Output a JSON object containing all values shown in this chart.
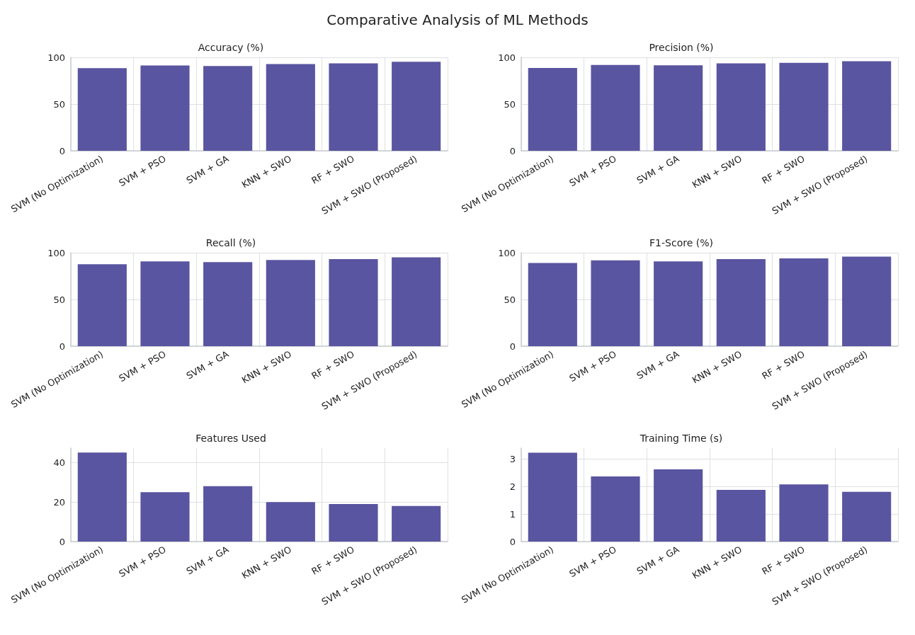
{
  "chart_data": [
    {
      "type": "other",
      "title": "Comparative Analysis of ML Methods"
    },
    {
      "type": "bar",
      "title": "Accuracy (%)",
      "categories": [
        "SVM (No Optimization)",
        "SVM + PSO",
        "SVM + GA",
        "KNN + SWO",
        "RF + SWO",
        "SVM + SWO (Proposed)"
      ],
      "values": [
        88.5,
        91.2,
        90.7,
        92.8,
        93.6,
        95.2
      ],
      "color": "#5a55a0",
      "ylim": [
        0,
        100
      ],
      "yticks": [
        0,
        50,
        100
      ],
      "grid": true
    },
    {
      "type": "bar",
      "title": "Precision (%)",
      "categories": [
        "SVM (No Optimization)",
        "SVM + PSO",
        "SVM + GA",
        "KNN + SWO",
        "RF + SWO",
        "SVM + SWO (Proposed)"
      ],
      "values": [
        88.7,
        91.9,
        91.4,
        93.5,
        94.2,
        95.8
      ],
      "color": "#5a55a0",
      "ylim": [
        0,
        100
      ],
      "yticks": [
        0,
        50,
        100
      ],
      "grid": true
    },
    {
      "type": "bar",
      "title": "Recall (%)",
      "categories": [
        "SVM (No Optimization)",
        "SVM + PSO",
        "SVM + GA",
        "KNN + SWO",
        "RF + SWO",
        "SVM + SWO (Proposed)"
      ],
      "values": [
        87.6,
        90.7,
        89.9,
        92.3,
        93.1,
        95.0
      ],
      "color": "#5a55a0",
      "ylim": [
        0,
        100
      ],
      "yticks": [
        0,
        50,
        100
      ],
      "grid": true
    },
    {
      "type": "bar",
      "title": "F1-Score (%)",
      "categories": [
        "SVM (No Optimization)",
        "SVM + PSO",
        "SVM + GA",
        "KNN + SWO",
        "RF + SWO",
        "SVM + SWO (Proposed)"
      ],
      "values": [
        89.0,
        91.9,
        90.8,
        93.2,
        94.0,
        95.8
      ],
      "color": "#5a55a0",
      "ylim": [
        0,
        100
      ],
      "yticks": [
        0,
        50,
        100
      ],
      "grid": true
    },
    {
      "type": "bar",
      "title": "Features Used",
      "categories": [
        "SVM (No Optimization)",
        "SVM + PSO",
        "SVM + GA",
        "KNN + SWO",
        "RF + SWO",
        "SVM + SWO (Proposed)"
      ],
      "values": [
        45,
        25,
        28,
        20,
        19,
        18
      ],
      "color": "#5a55a0",
      "ylim": [
        0,
        47.25
      ],
      "yticks": [
        0,
        20,
        40
      ],
      "grid": true
    },
    {
      "type": "bar",
      "title": "Training Time (s)",
      "categories": [
        "SVM (No Optimization)",
        "SVM + PSO",
        "SVM + GA",
        "KNN + SWO",
        "RF + SWO",
        "SVM + SWO (Proposed)"
      ],
      "values": [
        3.23,
        2.37,
        2.63,
        1.88,
        2.08,
        1.81
      ],
      "color": "#5a55a0",
      "ylim": [
        0,
        3.4
      ],
      "yticks": [
        0,
        1,
        2,
        3
      ],
      "grid": true
    }
  ]
}
